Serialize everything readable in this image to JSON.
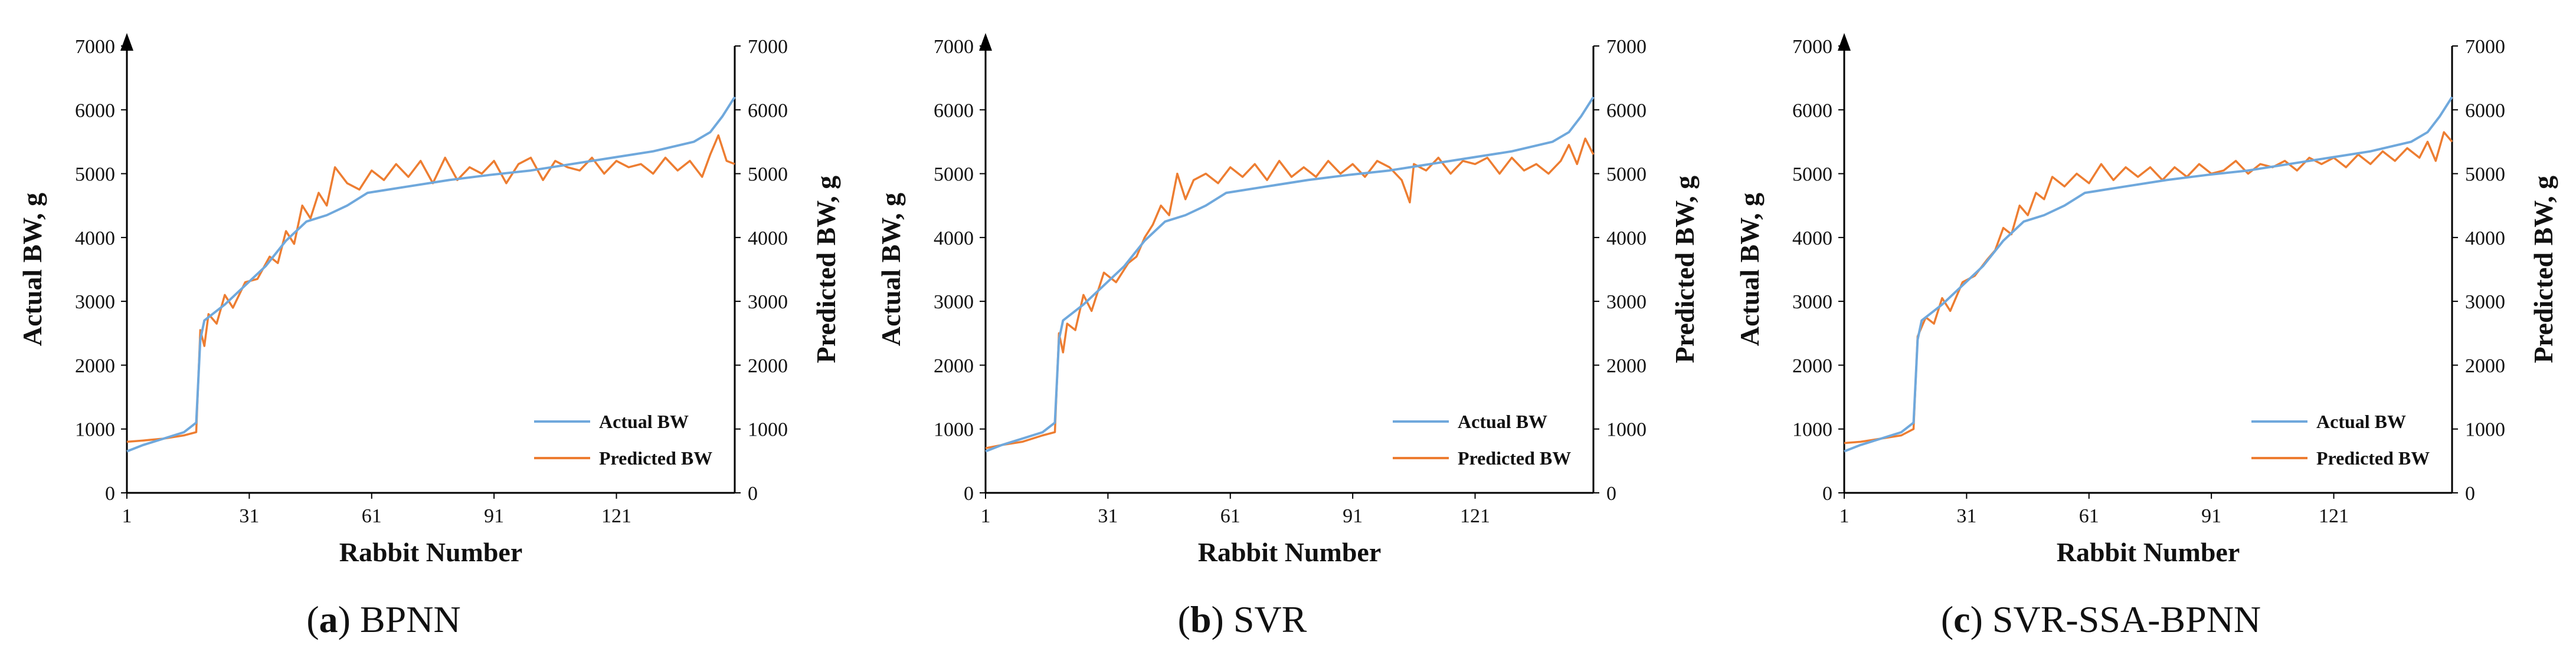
{
  "colors": {
    "actual": "#6FA8DC",
    "predicted": "#ED7D31",
    "axis": "#000000",
    "text": "#111111"
  },
  "chart_data": [
    {
      "type": "line",
      "caption": {
        "letter": "a",
        "name": "BPNN"
      },
      "xlabel": "Rabbit Number",
      "ylabel_left": "Actual BW, g",
      "ylabel_right": "Predicted BW, g",
      "xlim": [
        1,
        150
      ],
      "ylim": [
        0,
        7000
      ],
      "xticks": [
        1,
        31,
        61,
        91,
        121
      ],
      "yticks": [
        0,
        1000,
        2000,
        3000,
        4000,
        5000,
        6000,
        7000
      ],
      "legend": {
        "position": "bottom-right",
        "actual_label": "Actual BW",
        "predicted_label": "Predicted BW"
      },
      "series": [
        {
          "name": "Actual BW",
          "color": "#6FA8DC",
          "x": [
            1,
            5,
            10,
            15,
            18,
            19,
            20,
            25,
            30,
            35,
            40,
            45,
            50,
            55,
            60,
            70,
            80,
            90,
            100,
            110,
            120,
            130,
            140,
            144,
            147,
            150
          ],
          "y": [
            650,
            750,
            850,
            950,
            1100,
            2400,
            2700,
            2950,
            3250,
            3550,
            3950,
            4250,
            4350,
            4500,
            4700,
            4800,
            4900,
            4980,
            5050,
            5150,
            5250,
            5350,
            5500,
            5650,
            5900,
            6200
          ]
        },
        {
          "name": "Predicted BW",
          "color": "#ED7D31",
          "x": [
            1,
            5,
            10,
            15,
            18,
            19,
            20,
            21,
            23,
            25,
            27,
            30,
            33,
            36,
            38,
            40,
            42,
            44,
            46,
            48,
            50,
            52,
            55,
            58,
            61,
            64,
            67,
            70,
            73,
            76,
            79,
            82,
            85,
            88,
            91,
            94,
            97,
            100,
            103,
            106,
            109,
            112,
            115,
            118,
            121,
            124,
            127,
            130,
            133,
            136,
            139,
            142,
            144,
            146,
            148,
            150
          ],
          "y": [
            800,
            820,
            850,
            900,
            950,
            2550,
            2300,
            2800,
            2650,
            3100,
            2900,
            3300,
            3350,
            3700,
            3600,
            4100,
            3900,
            4500,
            4300,
            4700,
            4500,
            5100,
            4850,
            4750,
            5050,
            4900,
            5150,
            4950,
            5200,
            4850,
            5250,
            4900,
            5100,
            5000,
            5200,
            4850,
            5150,
            5250,
            4900,
            5200,
            5100,
            5050,
            5250,
            5000,
            5200,
            5100,
            5150,
            5000,
            5250,
            5050,
            5200,
            4950,
            5300,
            5600,
            5200,
            5150
          ]
        }
      ]
    },
    {
      "type": "line",
      "caption": {
        "letter": "b",
        "name": "SVR"
      },
      "xlabel": "Rabbit Number",
      "ylabel_left": "Actual BW, g",
      "ylabel_right": "Predicted BW, g",
      "xlim": [
        1,
        150
      ],
      "ylim": [
        0,
        7000
      ],
      "xticks": [
        1,
        31,
        61,
        91,
        121
      ],
      "yticks": [
        0,
        1000,
        2000,
        3000,
        4000,
        5000,
        6000,
        7000
      ],
      "legend": {
        "position": "bottom-right",
        "actual_label": "Actual BW",
        "predicted_label": "Predicted BW"
      },
      "series": [
        {
          "name": "Actual BW",
          "color": "#6FA8DC",
          "x": [
            1,
            5,
            10,
            15,
            18,
            19,
            20,
            25,
            30,
            35,
            40,
            45,
            50,
            55,
            60,
            70,
            80,
            90,
            100,
            110,
            120,
            130,
            140,
            144,
            147,
            150
          ],
          "y": [
            650,
            750,
            850,
            950,
            1100,
            2400,
            2700,
            2950,
            3250,
            3550,
            3950,
            4250,
            4350,
            4500,
            4700,
            4800,
            4900,
            4980,
            5050,
            5150,
            5250,
            5350,
            5500,
            5650,
            5900,
            6200
          ]
        },
        {
          "name": "Predicted BW",
          "color": "#ED7D31",
          "x": [
            1,
            5,
            10,
            15,
            18,
            19,
            20,
            21,
            23,
            25,
            27,
            30,
            33,
            36,
            38,
            40,
            42,
            44,
            46,
            48,
            50,
            52,
            55,
            58,
            61,
            64,
            67,
            70,
            73,
            76,
            79,
            82,
            85,
            88,
            91,
            94,
            97,
            100,
            103,
            105,
            106,
            109,
            112,
            115,
            118,
            121,
            124,
            127,
            130,
            133,
            136,
            139,
            142,
            144,
            146,
            148,
            150
          ],
          "y": [
            700,
            750,
            800,
            900,
            950,
            2500,
            2200,
            2650,
            2550,
            3100,
            2850,
            3450,
            3300,
            3600,
            3700,
            4000,
            4200,
            4500,
            4350,
            5000,
            4600,
            4900,
            5000,
            4850,
            5100,
            4950,
            5150,
            4900,
            5200,
            4950,
            5100,
            4950,
            5200,
            5000,
            5150,
            4950,
            5200,
            5100,
            4900,
            4550,
            5150,
            5050,
            5250,
            5000,
            5200,
            5150,
            5250,
            5000,
            5250,
            5050,
            5150,
            5000,
            5200,
            5450,
            5150,
            5550,
            5300
          ]
        }
      ]
    },
    {
      "type": "line",
      "caption": {
        "letter": "c",
        "name": "SVR-SSA-BPNN"
      },
      "xlabel": "Rabbit Number",
      "ylabel_left": "Actual BW, g",
      "ylabel_right": "Predicted BW, g",
      "xlim": [
        1,
        150
      ],
      "ylim": [
        0,
        7000
      ],
      "xticks": [
        1,
        31,
        61,
        91,
        121
      ],
      "yticks": [
        0,
        1000,
        2000,
        3000,
        4000,
        5000,
        6000,
        7000
      ],
      "legend": {
        "position": "bottom-right",
        "actual_label": "Actual BW",
        "predicted_label": "Predicted BW"
      },
      "series": [
        {
          "name": "Actual BW",
          "color": "#6FA8DC",
          "x": [
            1,
            5,
            10,
            15,
            18,
            19,
            20,
            25,
            30,
            35,
            40,
            45,
            50,
            55,
            60,
            70,
            80,
            90,
            100,
            110,
            120,
            130,
            140,
            144,
            147,
            150
          ],
          "y": [
            650,
            750,
            850,
            950,
            1100,
            2400,
            2700,
            2950,
            3250,
            3550,
            3950,
            4250,
            4350,
            4500,
            4700,
            4800,
            4900,
            4980,
            5050,
            5150,
            5250,
            5350,
            5500,
            5650,
            5900,
            6200
          ]
        },
        {
          "name": "Predicted BW",
          "color": "#ED7D31",
          "x": [
            1,
            5,
            10,
            15,
            18,
            19,
            20,
            21,
            23,
            25,
            27,
            30,
            33,
            36,
            38,
            40,
            42,
            44,
            46,
            48,
            50,
            52,
            55,
            58,
            61,
            64,
            67,
            70,
            73,
            76,
            79,
            82,
            85,
            88,
            91,
            94,
            97,
            100,
            103,
            106,
            109,
            112,
            115,
            118,
            121,
            124,
            127,
            130,
            133,
            136,
            139,
            142,
            144,
            146,
            148,
            150
          ],
          "y": [
            780,
            800,
            850,
            900,
            1000,
            2450,
            2600,
            2750,
            2650,
            3050,
            2850,
            3300,
            3400,
            3650,
            3800,
            4150,
            4050,
            4500,
            4350,
            4700,
            4600,
            4950,
            4800,
            5000,
            4850,
            5150,
            4900,
            5100,
            4950,
            5100,
            4900,
            5100,
            4950,
            5150,
            5000,
            5050,
            5200,
            5000,
            5150,
            5100,
            5200,
            5050,
            5250,
            5150,
            5250,
            5100,
            5300,
            5150,
            5350,
            5200,
            5400,
            5250,
            5500,
            5200,
            5650,
            5500
          ]
        }
      ]
    }
  ]
}
